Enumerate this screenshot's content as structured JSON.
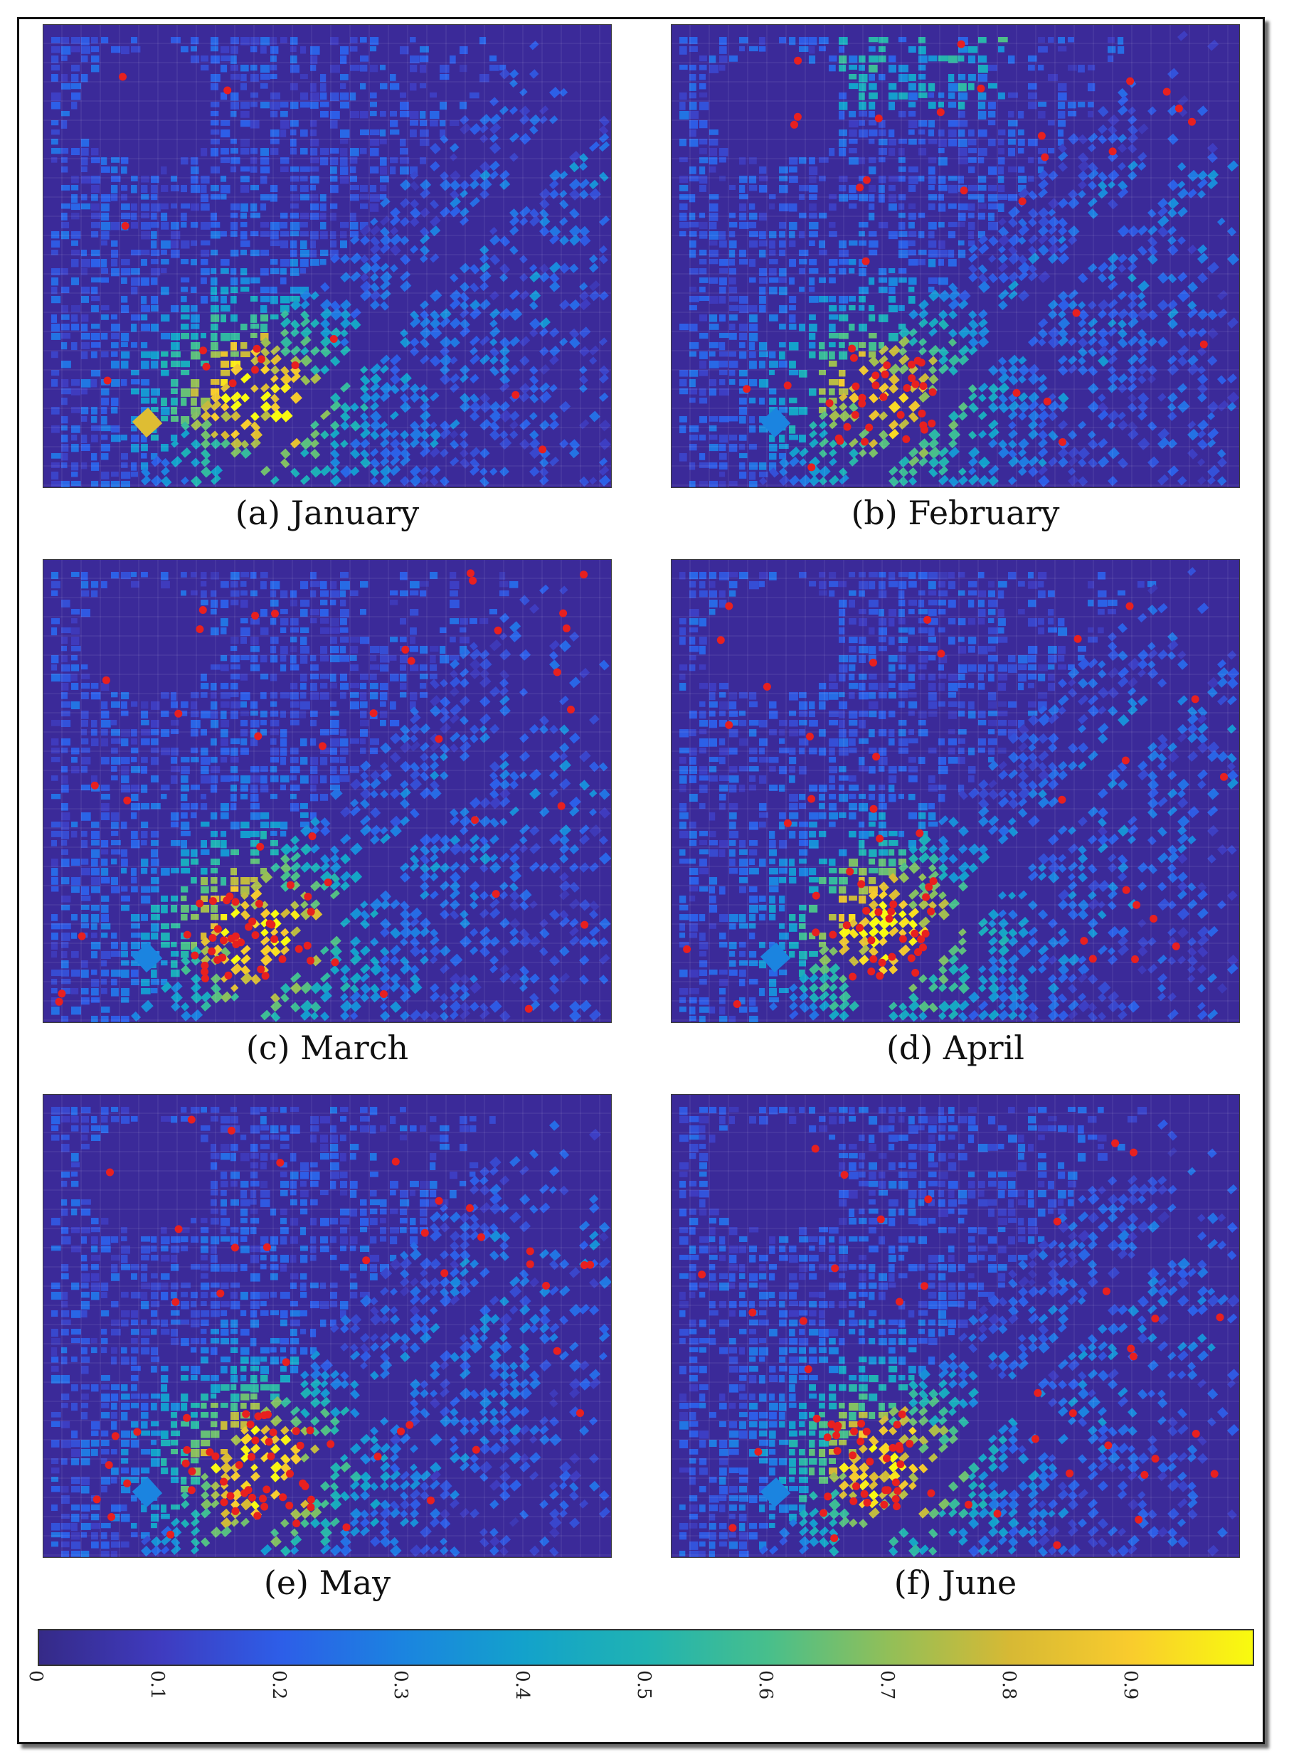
{
  "figure": {
    "panels": [
      {
        "id": "a",
        "caption": "(a) January",
        "red_points": 14,
        "hotspot_intensity": 0.95
      },
      {
        "id": "b",
        "caption": "(b) February",
        "red_points": 58,
        "hotspot_intensity": 0.85
      },
      {
        "id": "c",
        "caption": "(c) March",
        "red_points": 72,
        "hotspot_intensity": 0.95
      },
      {
        "id": "d",
        "caption": "(d) April",
        "red_points": 60,
        "hotspot_intensity": 0.95
      },
      {
        "id": "e",
        "caption": "(e) May",
        "red_points": 78,
        "hotspot_intensity": 0.95
      },
      {
        "id": "f",
        "caption": "(f) June",
        "red_points": 70,
        "hotspot_intensity": 0.9
      }
    ],
    "colorbar": {
      "ticks": [
        "0",
        "0.1",
        "0.2",
        "0.3",
        "0.4",
        "0.5",
        "0.6",
        "0.7",
        "0.8",
        "0.9"
      ],
      "range": [
        0,
        1
      ],
      "colormap": "parula"
    },
    "colors": {
      "background": "#3b2a99",
      "point": "#e8201f"
    }
  }
}
